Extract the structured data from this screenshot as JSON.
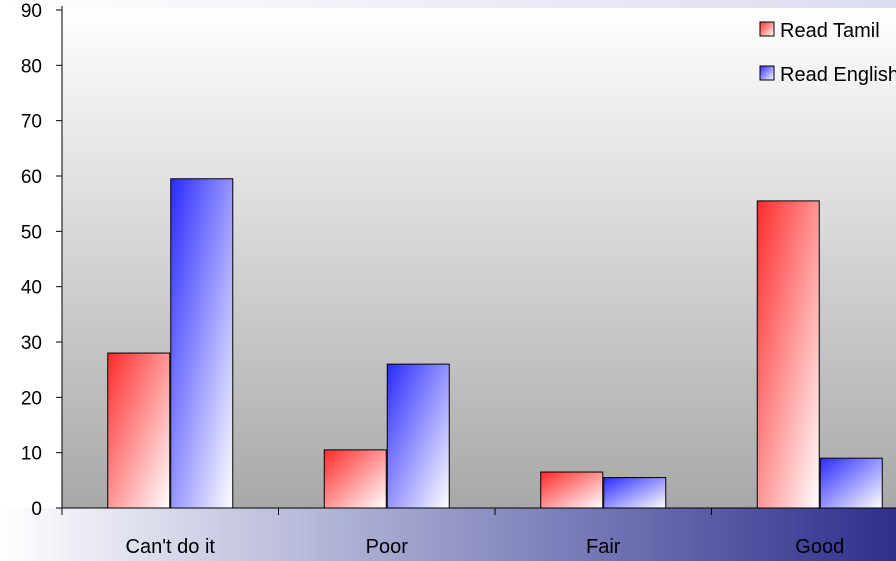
{
  "chart_data": {
    "type": "bar",
    "title": "",
    "xlabel": "",
    "ylabel": "",
    "categories": [
      "Can't do it",
      "Poor",
      "Fair",
      "Good"
    ],
    "series": [
      {
        "name": "Read Tamil",
        "values": [
          28,
          10.5,
          6.5,
          55.5
        ],
        "color": "#ff2b2b"
      },
      {
        "name": "Read English",
        "values": [
          59.5,
          26,
          5.5,
          9
        ],
        "color": "#2b2bff"
      }
    ],
    "ylim": [
      0,
      90
    ],
    "yticks": [
      0,
      10,
      20,
      30,
      40,
      50,
      60,
      70,
      80,
      90
    ],
    "grid": false,
    "legend_position": "top-right"
  }
}
